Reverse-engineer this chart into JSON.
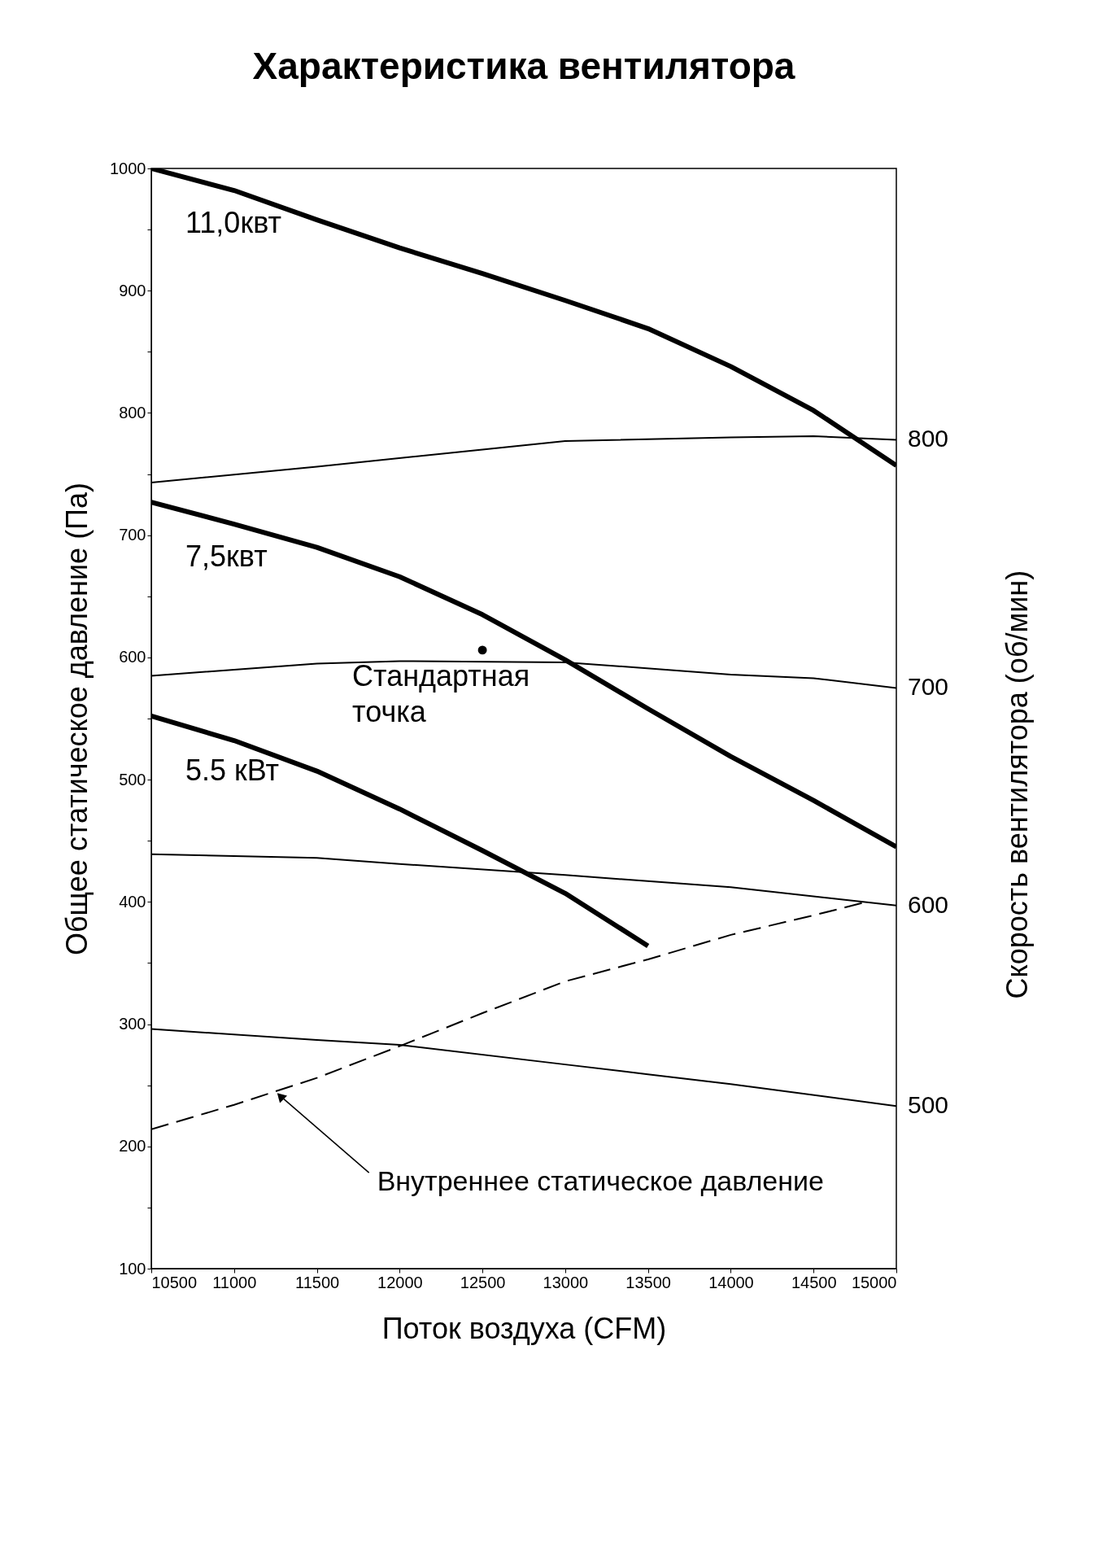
{
  "chart_data": {
    "type": "line",
    "title": "Характеристика вентилятора",
    "xlabel": "Поток воздуха (CFM)",
    "ylabel": "Общее статическое давление (Па)",
    "y2label": "Скорость вентилятора (об/мин)",
    "xlim": [
      10500,
      15000
    ],
    "xticks": [
      10500,
      11000,
      11500,
      12000,
      12500,
      13000,
      13500,
      14000,
      14500,
      15000
    ],
    "ylim": [
      100,
      1000
    ],
    "yticks": [
      100,
      {
        "value": 150,
        "label": null
      },
      200,
      {
        "value": 250,
        "label": null
      },
      300,
      {
        "value": 350,
        "label": null
      },
      400,
      {
        "value": 450,
        "label": null
      },
      500,
      {
        "value": 550,
        "label": null
      },
      600,
      {
        "value": 650,
        "label": null
      },
      700,
      {
        "value": 750,
        "label": null
      },
      800,
      {
        "value": 850,
        "label": null
      },
      900,
      {
        "value": 950,
        "label": null
      },
      1000
    ],
    "grid": false,
    "marker": "none",
    "series": [
      {
        "name": "11,0квт",
        "color": "#000000",
        "line_style": "solid",
        "x": [
          10500,
          11000,
          11500,
          12000,
          12500,
          13000,
          13500,
          14000,
          14500,
          15000
        ],
        "values": [
          1000,
          982,
          958,
          935,
          914,
          892,
          869,
          838,
          802,
          757
        ]
      },
      {
        "name": "7,5квт",
        "color": "#000000",
        "line_style": "solid",
        "x": [
          10500,
          11000,
          11500,
          12000,
          12500,
          13000,
          13500,
          14000,
          14500,
          15000
        ],
        "values": [
          727,
          709,
          690,
          666,
          635,
          598,
          558,
          519,
          483,
          445
        ]
      },
      {
        "name": "5.5 кВт",
        "color": "#000000",
        "line_style": "solid",
        "x": [
          10500,
          11000,
          11500,
          12000,
          12500,
          13000,
          13500
        ],
        "values": [
          552,
          532,
          507,
          476,
          442,
          407,
          364
        ]
      },
      {
        "name": "800",
        "color": "#000000",
        "line_style": "solid",
        "x": [
          10500,
          11500,
          12500,
          13000,
          14000,
          14500,
          15000
        ],
        "values": [
          743,
          756,
          770,
          777,
          780,
          781,
          778
        ]
      },
      {
        "name": "700",
        "color": "#000000",
        "line_style": "solid",
        "x": [
          10500,
          11500,
          12000,
          13000,
          14000,
          14500,
          15000
        ],
        "values": [
          585,
          595,
          597,
          596,
          586,
          583,
          575
        ]
      },
      {
        "name": "600",
        "color": "#000000",
        "line_style": "solid",
        "x": [
          10500,
          11500,
          12000,
          13000,
          14000,
          15000
        ],
        "values": [
          439,
          436,
          431,
          422,
          412,
          397
        ]
      },
      {
        "name": "500",
        "color": "#000000",
        "line_style": "solid",
        "x": [
          10500,
          11500,
          12000,
          13000,
          13500,
          14000,
          15000
        ],
        "values": [
          296,
          287,
          283,
          267,
          259,
          251,
          233
        ]
      },
      {
        "color": "#000000",
        "line_style": "dashed",
        "x": [
          10500,
          11000,
          11500,
          12000,
          12500,
          13000,
          13500,
          14000,
          14500,
          14820
        ],
        "values": [
          214,
          234,
          256,
          282,
          309,
          335,
          353,
          373,
          389,
          400
        ]
      },
      {
        "type": "scatter",
        "color": "#000000",
        "marker": "circle",
        "x": [
          12500
        ],
        "values": [
          606
        ]
      }
    ],
    "annotations": [
      {
        "text": "Стандартная\nточка",
        "x": 12500,
        "y": 606
      },
      {
        "text": "Внутреннее статическое давление",
        "x": 11250,
        "y": 245
      }
    ]
  }
}
